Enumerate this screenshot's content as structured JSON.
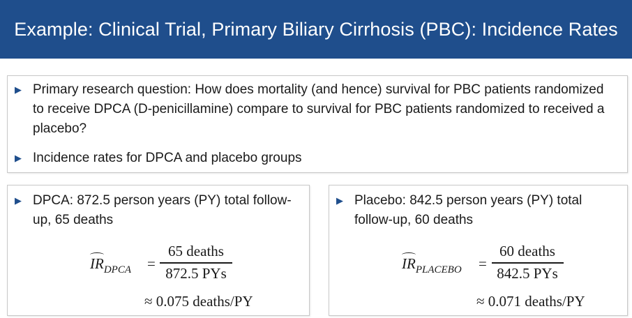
{
  "header": {
    "title": "Example: Clinical Trial, Primary Biliary Cirrhosis (PBC): Incidence Rates"
  },
  "main_box": {
    "bullets": [
      "Primary research question: How does mortality (and hence) survival for PBC patients randomized to receive DPCA (D-penicillamine) compare to survival for PBC patients randomized to received a placebo?",
      "Incidence rates for DPCA and placebo groups"
    ]
  },
  "dpca": {
    "bullet": "DPCA: 872.5 person years (PY) total follow-up, 65 deaths",
    "lhs": "IR",
    "subscript": "DPCA",
    "equals": "=",
    "numerator": "65 deaths",
    "denominator": "872.5 PYs",
    "result": "≈ 0.075 deaths/PY"
  },
  "placebo": {
    "bullet": "Placebo: 842.5 person years (PY) total follow-up, 60 deaths",
    "lhs": "IR",
    "subscript": "PLACEBO",
    "equals": "=",
    "numerator": "60 deaths",
    "denominator": "842.5 PYs",
    "result": "≈ 0.071 deaths/PY"
  },
  "colors": {
    "header_bg": "#1f4e8c",
    "bullet_marker": "#1f4e8c"
  },
  "icons": {
    "bullet": "triangle-right-icon"
  }
}
